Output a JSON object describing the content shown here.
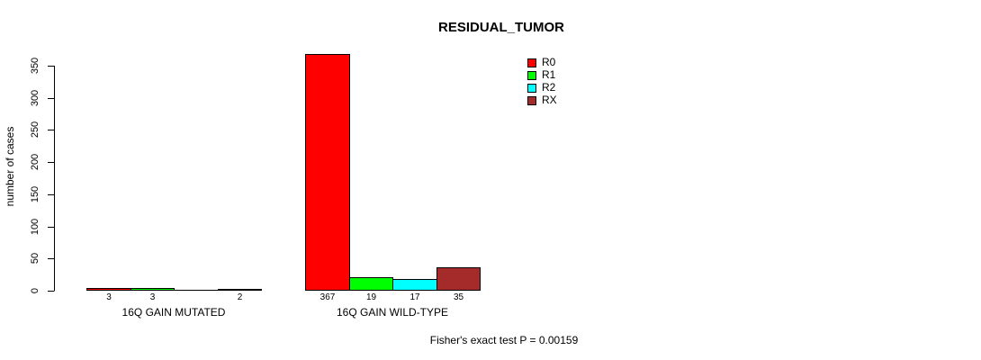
{
  "title": "RESIDUAL_TUMOR",
  "y_axis": {
    "label": "number of cases"
  },
  "footer": "Fisher's exact test P = 0.00159",
  "chart_data": {
    "type": "bar",
    "title": "RESIDUAL_TUMOR",
    "xlabel": "",
    "ylabel": "number of cases",
    "categories": [
      "16Q GAIN MUTATED",
      "16Q GAIN WILD-TYPE"
    ],
    "series": [
      {
        "name": "R0",
        "color": "#FF0000",
        "values": [
          3,
          367
        ]
      },
      {
        "name": "R1",
        "color": "#00FF00",
        "values": [
          3,
          19
        ]
      },
      {
        "name": "R2",
        "color": "#00FFFF",
        "values": [
          0,
          17
        ]
      },
      {
        "name": "RX",
        "color": "#A52A2A",
        "values": [
          2,
          35
        ]
      }
    ],
    "bar_value_labels": [
      [
        "3",
        "3",
        "",
        "2"
      ],
      [
        "367",
        "19",
        "17",
        "35"
      ]
    ],
    "ylim": [
      0,
      350
    ],
    "yticks": [
      0,
      50,
      100,
      150,
      200,
      250,
      300,
      350
    ],
    "grid": false,
    "legend_position": "upper-right",
    "annotation": "Fisher's exact test P = 0.00159"
  }
}
